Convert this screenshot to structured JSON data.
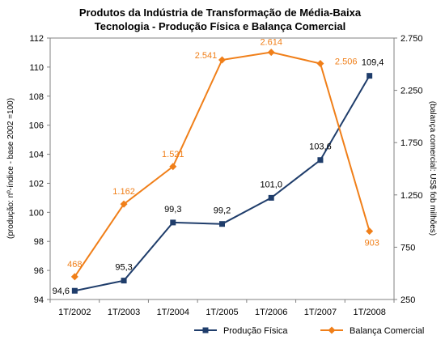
{
  "chart_data": {
    "type": "line",
    "title": "Produtos da Indústria de Transformação de Média-Baixa",
    "subtitle": "Tecnologia - Produção Física e Balança Comercial",
    "categories": [
      "1T/2002",
      "1T/2003",
      "1T/2004",
      "1T/2005",
      "1T/2006",
      "1T/2007",
      "1T/2008"
    ],
    "y_left": {
      "label": "(produção: nº-índice - base 2002 =100)",
      "range": [
        94,
        112
      ],
      "ticks": [
        "94",
        "96",
        "98",
        "100",
        "102",
        "104",
        "106",
        "108",
        "110",
        "112"
      ]
    },
    "y_right": {
      "label": "(balança comercial: US$ fob milhões)",
      "range": [
        250,
        2750
      ],
      "ticks": [
        "250",
        "750",
        "1.250",
        "1.750",
        "2.250",
        "2.750"
      ]
    },
    "series": [
      {
        "name": "Produção Física",
        "axis": "left",
        "color": "#1f3d6b",
        "marker": "square",
        "values": [
          94.6,
          95.3,
          99.3,
          99.2,
          101.0,
          103.6,
          109.4
        ],
        "labels": [
          "94,6",
          "95,3",
          "99,3",
          "99,2",
          "101,0",
          "103,6",
          "109,4"
        ]
      },
      {
        "name": "Balança Comercial",
        "axis": "right",
        "color": "#f07f19",
        "marker": "diamond",
        "values": [
          468,
          1162,
          1521,
          2541,
          2614,
          2506,
          903
        ],
        "labels": [
          "468",
          "1.162",
          "1.521",
          "2.541",
          "2.614",
          "2.506",
          "903"
        ]
      }
    ],
    "grid": false,
    "legend_position": "bottom-right"
  }
}
